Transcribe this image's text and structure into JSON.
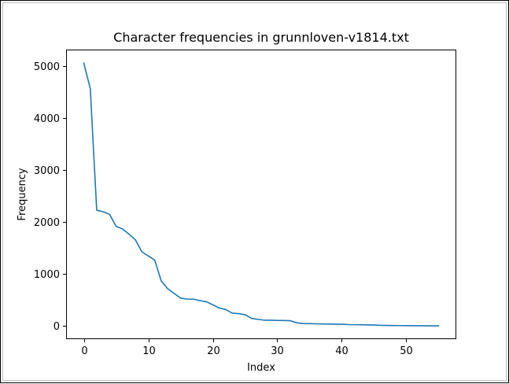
{
  "chart_data": {
    "type": "line",
    "title": "Character frequencies in grunnloven-v1814.txt",
    "xlabel": "Index",
    "ylabel": "Frequency",
    "xlim": [
      -2.75,
      57.75
    ],
    "ylim": [
      -250,
      5320
    ],
    "xticks": [
      0,
      10,
      20,
      30,
      40,
      50
    ],
    "yticks": [
      0,
      1000,
      2000,
      3000,
      4000,
      5000
    ],
    "grid": false,
    "legend": "none",
    "series": [
      {
        "color": "#1f77b4",
        "x": [
          0,
          1,
          2,
          3,
          4,
          5,
          6,
          7,
          8,
          9,
          10,
          11,
          12,
          13,
          14,
          15,
          16,
          17,
          18,
          19,
          20,
          21,
          22,
          23,
          24,
          25,
          26,
          27,
          28,
          29,
          30,
          31,
          32,
          33,
          34,
          35,
          36,
          37,
          38,
          39,
          40,
          41,
          42,
          43,
          44,
          45,
          46,
          47,
          48,
          49,
          50,
          51,
          52,
          53,
          54,
          55
        ],
        "y": [
          5060,
          4570,
          2230,
          2200,
          2150,
          1920,
          1870,
          1770,
          1660,
          1430,
          1350,
          1270,
          870,
          720,
          630,
          540,
          520,
          520,
          490,
          470,
          410,
          350,
          320,
          250,
          240,
          220,
          150,
          130,
          115,
          115,
          110,
          108,
          105,
          65,
          50,
          48,
          45,
          42,
          40,
          38,
          36,
          30,
          28,
          27,
          24,
          22,
          16,
          14,
          12,
          11,
          10,
          9,
          8,
          7,
          6,
          5
        ]
      }
    ]
  }
}
